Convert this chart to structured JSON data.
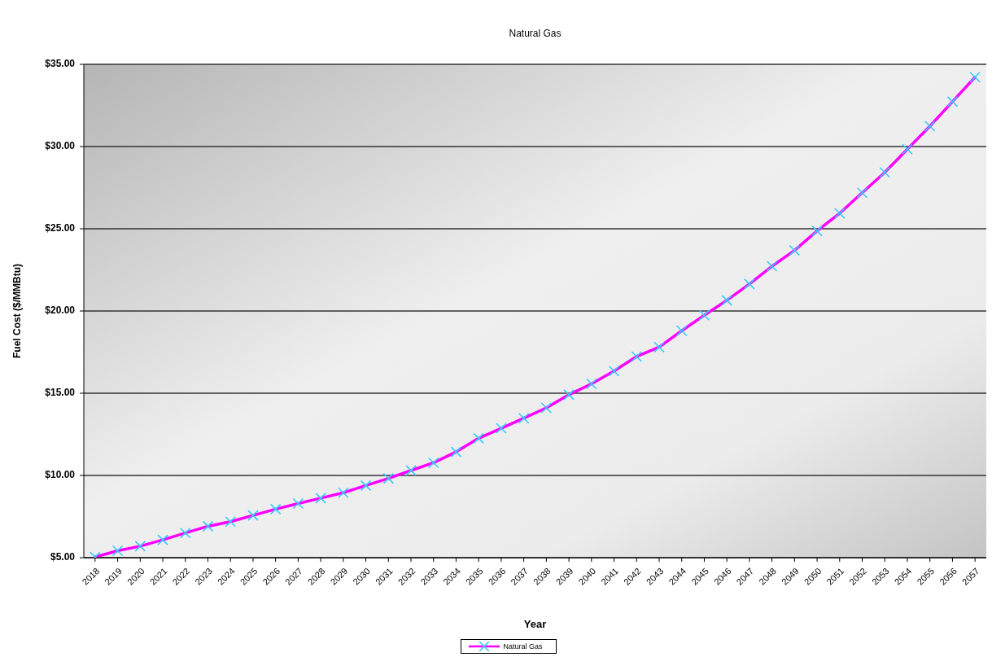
{
  "chart_data": {
    "type": "line",
    "title": "Natural Gas",
    "xlabel": "Year",
    "ylabel": "Fuel Cost ($/MMBtu)",
    "categories": [
      "2018",
      "2019",
      "2020",
      "2021",
      "2022",
      "2023",
      "2024",
      "2025",
      "2026",
      "2027",
      "2028",
      "2029",
      "2030",
      "2031",
      "2032",
      "2033",
      "2034",
      "2035",
      "2036",
      "2037",
      "2038",
      "2039",
      "2040",
      "2041",
      "2042",
      "2043",
      "2044",
      "2045",
      "2046",
      "2047",
      "2048",
      "2049",
      "2050",
      "2051",
      "2052",
      "2053",
      "2054",
      "2055",
      "2056",
      "2057"
    ],
    "series": [
      {
        "name": "Natural Gas",
        "color": "#ff00ff",
        "values": [
          5.04,
          5.42,
          5.7,
          6.08,
          6.5,
          6.91,
          7.19,
          7.57,
          7.95,
          8.29,
          8.62,
          8.95,
          9.39,
          9.82,
          10.3,
          10.77,
          11.43,
          12.26,
          12.87,
          13.48,
          14.11,
          14.91,
          15.57,
          16.35,
          17.23,
          17.8,
          18.8,
          19.74,
          20.65,
          21.64,
          22.72,
          23.68,
          24.87,
          25.94,
          27.19,
          28.43,
          29.84,
          31.24,
          32.73,
          34.22
        ]
      }
    ],
    "ylim": [
      5,
      35
    ],
    "yticks": [
      {
        "value": 5,
        "label": "$5.00"
      },
      {
        "value": 10,
        "label": "$10.00"
      },
      {
        "value": 15,
        "label": "$15.00"
      },
      {
        "value": 20,
        "label": "$20.00"
      },
      {
        "value": 25,
        "label": "$25.00"
      },
      {
        "value": 30,
        "label": "$30.00"
      },
      {
        "value": 35,
        "label": "$35.00"
      }
    ],
    "grid": "y",
    "legend": "bottom",
    "marker": "cross"
  }
}
